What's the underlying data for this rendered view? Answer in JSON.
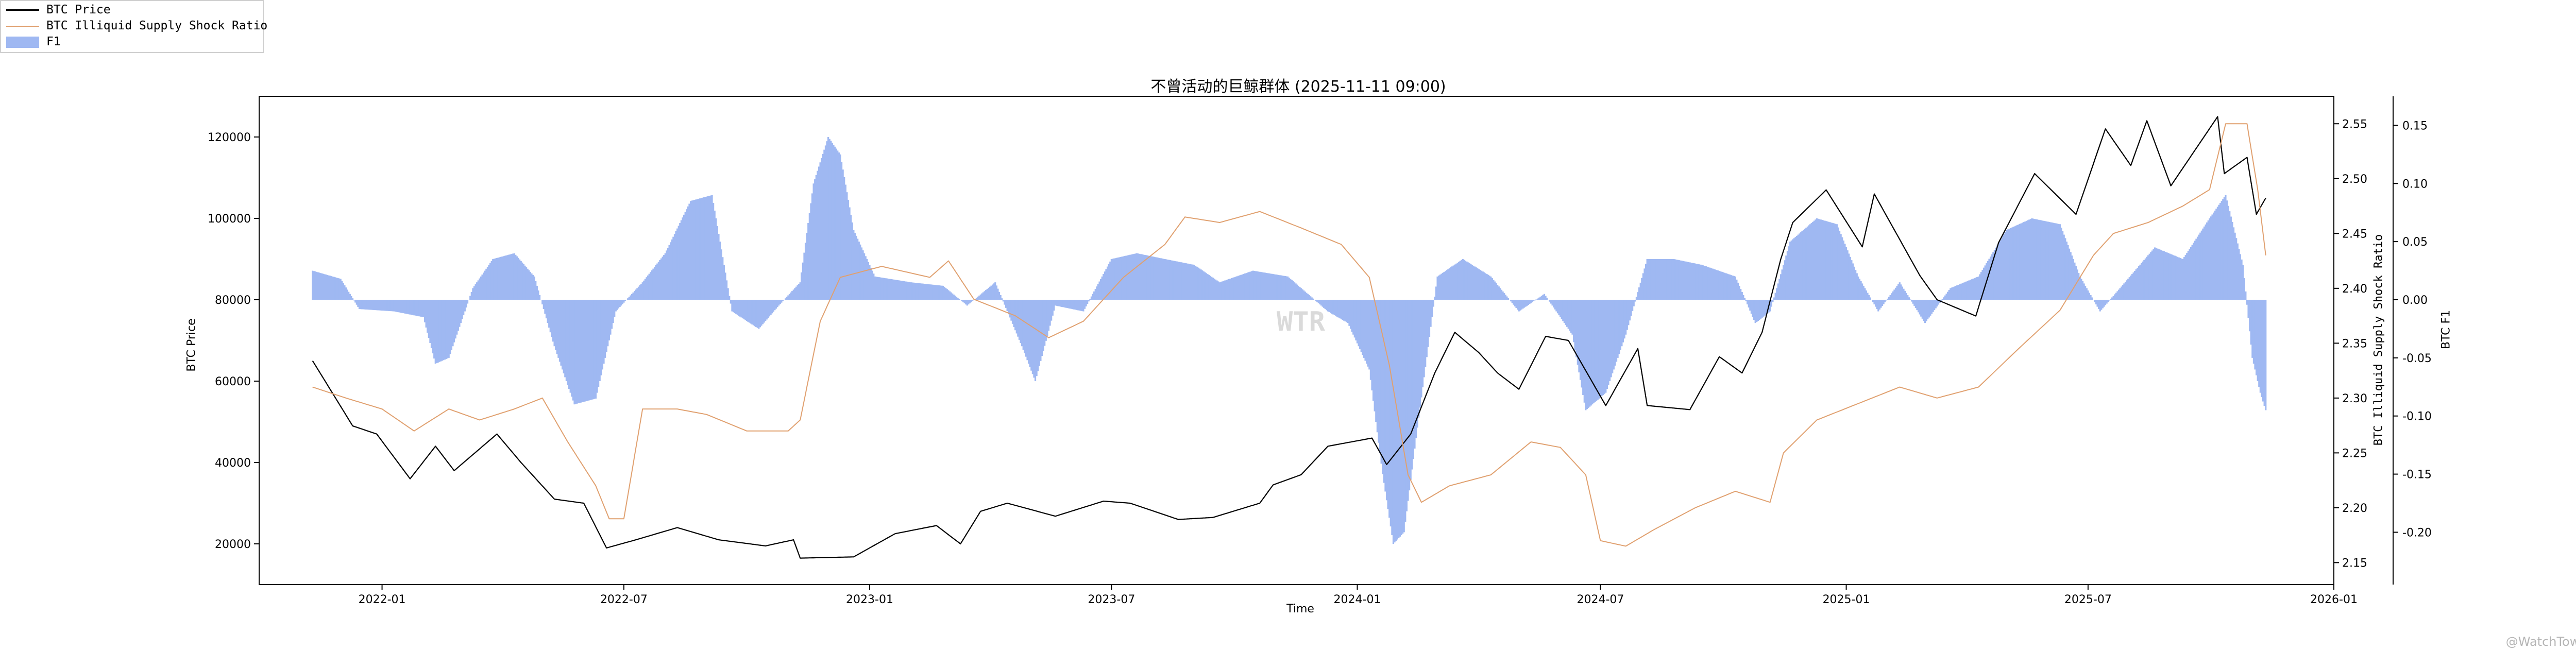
{
  "chart_data": {
    "type": "line",
    "title": "不曾活动的巨鲸群体 (2025-11-11 09:00)",
    "xlabel": "Time",
    "ylabel": "BTC Price",
    "ylabel_right_1": "BTC Illiquid Supply Shock Ratio",
    "ylabel_right_2": "BTC F1",
    "watermark": "WTR",
    "corner_watermark": "@WatchTower",
    "legend": {
      "placement": "top-left",
      "items": [
        {
          "label": "BTC Price",
          "kind": "line",
          "color": "#000000"
        },
        {
          "label": "BTC Illiquid Supply Shock Ratio",
          "kind": "line",
          "color": "#e0a06f"
        },
        {
          "label": "F1",
          "kind": "bar",
          "color": "#9fb8f2"
        }
      ]
    },
    "x_range": [
      "2021-10-01",
      "2026-01-01"
    ],
    "x_ticks": [
      "2022-01",
      "2022-07",
      "2023-01",
      "2023-07",
      "2024-01",
      "2024-07",
      "2025-01",
      "2025-07",
      "2026-01"
    ],
    "left_axis": {
      "ylim": [
        10000,
        130000
      ],
      "ticks": [
        20000,
        40000,
        60000,
        80000,
        100000,
        120000
      ],
      "tick_labels": [
        "20000",
        "40000",
        "60000",
        "80000",
        "100000",
        "120000"
      ]
    },
    "right_axis_1": {
      "ylim": [
        2.13,
        2.575
      ],
      "ticks": [
        2.15,
        2.2,
        2.25,
        2.3,
        2.35,
        2.4,
        2.45,
        2.5,
        2.55
      ],
      "tick_labels": [
        "2.15",
        "2.20",
        "2.25",
        "2.30",
        "2.35",
        "2.40",
        "2.45",
        "2.50",
        "2.55"
      ]
    },
    "right_axis_2": {
      "ylim": [
        -0.245,
        0.175
      ],
      "ticks": [
        -0.2,
        -0.15,
        -0.1,
        -0.05,
        0.0,
        0.05,
        0.1,
        0.15
      ],
      "tick_labels": [
        "-0.20",
        "-0.15",
        "-0.10",
        "-0.05",
        "0.00",
        "0.05",
        "0.10",
        "0.15"
      ]
    },
    "series": [
      {
        "name": "BTC Price",
        "axis": "left",
        "color": "#000000",
        "points": [
          [
            "2021-11-10",
            65000
          ],
          [
            "2021-11-25",
            57000
          ],
          [
            "2021-12-10",
            49000
          ],
          [
            "2021-12-28",
            47000
          ],
          [
            "2022-01-22",
            36000
          ],
          [
            "2022-02-10",
            44000
          ],
          [
            "2022-02-24",
            38000
          ],
          [
            "2022-03-28",
            47000
          ],
          [
            "2022-04-15",
            40000
          ],
          [
            "2022-05-10",
            31000
          ],
          [
            "2022-06-01",
            30000
          ],
          [
            "2022-06-18",
            19000
          ],
          [
            "2022-07-10",
            21000
          ],
          [
            "2022-08-10",
            24000
          ],
          [
            "2022-09-10",
            21000
          ],
          [
            "2022-10-15",
            19500
          ],
          [
            "2022-11-05",
            21000
          ],
          [
            "2022-11-10",
            16500
          ],
          [
            "2022-12-20",
            16800
          ],
          [
            "2023-01-20",
            22500
          ],
          [
            "2023-02-20",
            24500
          ],
          [
            "2023-03-10",
            20000
          ],
          [
            "2023-03-25",
            28000
          ],
          [
            "2023-04-14",
            30000
          ],
          [
            "2023-05-20",
            26800
          ],
          [
            "2023-06-25",
            30500
          ],
          [
            "2023-07-15",
            30000
          ],
          [
            "2023-08-20",
            26000
          ],
          [
            "2023-09-15",
            26500
          ],
          [
            "2023-10-20",
            30000
          ],
          [
            "2023-10-30",
            34500
          ],
          [
            "2023-11-20",
            37000
          ],
          [
            "2023-12-10",
            44000
          ],
          [
            "2024-01-12",
            46000
          ],
          [
            "2024-01-23",
            39500
          ],
          [
            "2024-02-10",
            47000
          ],
          [
            "2024-02-28",
            62000
          ],
          [
            "2024-03-14",
            72000
          ],
          [
            "2024-04-01",
            67000
          ],
          [
            "2024-04-15",
            62000
          ],
          [
            "2024-05-01",
            58000
          ],
          [
            "2024-05-21",
            71000
          ],
          [
            "2024-06-07",
            70000
          ],
          [
            "2024-07-05",
            54000
          ],
          [
            "2024-07-29",
            68000
          ],
          [
            "2024-08-05",
            54000
          ],
          [
            "2024-09-06",
            53000
          ],
          [
            "2024-09-28",
            66000
          ],
          [
            "2024-10-15",
            62000
          ],
          [
            "2024-10-30",
            72000
          ],
          [
            "2024-11-13",
            90000
          ],
          [
            "2024-11-22",
            99000
          ],
          [
            "2024-12-17",
            107000
          ],
          [
            "2025-01-13",
            93000
          ],
          [
            "2025-01-22",
            106000
          ],
          [
            "2025-02-25",
            86000
          ],
          [
            "2025-03-10",
            80000
          ],
          [
            "2025-04-08",
            76000
          ],
          [
            "2025-04-25",
            94000
          ],
          [
            "2025-05-22",
            111000
          ],
          [
            "2025-06-22",
            101000
          ],
          [
            "2025-07-14",
            122000
          ],
          [
            "2025-08-02",
            113000
          ],
          [
            "2025-08-14",
            124000
          ],
          [
            "2025-09-01",
            108000
          ],
          [
            "2025-10-06",
            125000
          ],
          [
            "2025-10-11",
            111000
          ],
          [
            "2025-10-28",
            115000
          ],
          [
            "2025-11-04",
            101000
          ],
          [
            "2025-11-11",
            105000
          ]
        ]
      },
      {
        "name": "BTC Illiquid Supply Shock Ratio",
        "axis": "right_1",
        "color": "#e0a06f",
        "points": [
          [
            "2021-11-10",
            2.31
          ],
          [
            "2021-12-05",
            2.3
          ],
          [
            "2022-01-01",
            2.29
          ],
          [
            "2022-01-25",
            2.27
          ],
          [
            "2022-02-20",
            2.29
          ],
          [
            "2022-03-15",
            2.28
          ],
          [
            "2022-04-10",
            2.29
          ],
          [
            "2022-05-01",
            2.3
          ],
          [
            "2022-05-20",
            2.26
          ],
          [
            "2022-06-10",
            2.22
          ],
          [
            "2022-06-20",
            2.19
          ],
          [
            "2022-07-01",
            2.19
          ],
          [
            "2022-07-15",
            2.29
          ],
          [
            "2022-08-10",
            2.29
          ],
          [
            "2022-09-01",
            2.285
          ],
          [
            "2022-10-01",
            2.27
          ],
          [
            "2022-11-01",
            2.27
          ],
          [
            "2022-11-10",
            2.28
          ],
          [
            "2022-11-25",
            2.37
          ],
          [
            "2022-12-10",
            2.41
          ],
          [
            "2023-01-10",
            2.42
          ],
          [
            "2023-02-15",
            2.41
          ],
          [
            "2023-03-01",
            2.425
          ],
          [
            "2023-03-20",
            2.39
          ],
          [
            "2023-04-20",
            2.375
          ],
          [
            "2023-05-15",
            2.355
          ],
          [
            "2023-06-10",
            2.37
          ],
          [
            "2023-07-10",
            2.41
          ],
          [
            "2023-08-10",
            2.44
          ],
          [
            "2023-08-25",
            2.465
          ],
          [
            "2023-09-20",
            2.46
          ],
          [
            "2023-10-20",
            2.47
          ],
          [
            "2023-11-20",
            2.455
          ],
          [
            "2023-12-20",
            2.44
          ],
          [
            "2024-01-10",
            2.41
          ],
          [
            "2024-01-25",
            2.33
          ],
          [
            "2024-02-08",
            2.23
          ],
          [
            "2024-02-18",
            2.205
          ],
          [
            "2024-03-10",
            2.22
          ],
          [
            "2024-04-10",
            2.23
          ],
          [
            "2024-05-10",
            2.26
          ],
          [
            "2024-06-01",
            2.255
          ],
          [
            "2024-06-20",
            2.23
          ],
          [
            "2024-07-01",
            2.17
          ],
          [
            "2024-07-20",
            2.165
          ],
          [
            "2024-08-10",
            2.18
          ],
          [
            "2024-09-10",
            2.2
          ],
          [
            "2024-10-10",
            2.215
          ],
          [
            "2024-11-05",
            2.205
          ],
          [
            "2024-11-15",
            2.25
          ],
          [
            "2024-12-10",
            2.28
          ],
          [
            "2025-01-10",
            2.295
          ],
          [
            "2025-02-10",
            2.31
          ],
          [
            "2025-03-10",
            2.3
          ],
          [
            "2025-04-10",
            2.31
          ],
          [
            "2025-05-10",
            2.345
          ],
          [
            "2025-06-10",
            2.38
          ],
          [
            "2025-07-05",
            2.43
          ],
          [
            "2025-07-20",
            2.45
          ],
          [
            "2025-08-15",
            2.46
          ],
          [
            "2025-09-10",
            2.475
          ],
          [
            "2025-09-30",
            2.49
          ],
          [
            "2025-10-12",
            2.55
          ],
          [
            "2025-10-28",
            2.55
          ],
          [
            "2025-11-05",
            2.49
          ],
          [
            "2025-11-11",
            2.43
          ]
        ]
      },
      {
        "name": "F1",
        "axis": "right_2",
        "type": "bar",
        "color": "#9fb8f2",
        "points": [
          [
            "2021-11-10",
            0.025
          ],
          [
            "2021-12-01",
            0.018
          ],
          [
            "2021-12-15",
            -0.008
          ],
          [
            "2022-01-10",
            -0.01
          ],
          [
            "2022-02-01",
            -0.015
          ],
          [
            "2022-02-10",
            -0.055
          ],
          [
            "2022-02-20",
            -0.05
          ],
          [
            "2022-03-10",
            0.01
          ],
          [
            "2022-03-25",
            0.035
          ],
          [
            "2022-04-10",
            0.04
          ],
          [
            "2022-04-25",
            0.02
          ],
          [
            "2022-05-10",
            -0.04
          ],
          [
            "2022-05-25",
            -0.09
          ],
          [
            "2022-06-10",
            -0.085
          ],
          [
            "2022-06-25",
            -0.01
          ],
          [
            "2022-07-15",
            0.015
          ],
          [
            "2022-08-01",
            0.04
          ],
          [
            "2022-08-20",
            0.085
          ],
          [
            "2022-09-05",
            0.09
          ],
          [
            "2022-09-20",
            -0.01
          ],
          [
            "2022-10-10",
            -0.025
          ],
          [
            "2022-10-25",
            -0.005
          ],
          [
            "2022-11-10",
            0.015
          ],
          [
            "2022-11-20",
            0.1
          ],
          [
            "2022-12-01",
            0.14
          ],
          [
            "2022-12-10",
            0.125
          ],
          [
            "2022-12-20",
            0.06
          ],
          [
            "2023-01-05",
            0.02
          ],
          [
            "2023-02-01",
            0.015
          ],
          [
            "2023-02-25",
            0.012
          ],
          [
            "2023-03-15",
            -0.005
          ],
          [
            "2023-04-05",
            0.015
          ],
          [
            "2023-04-25",
            -0.04
          ],
          [
            "2023-05-05",
            -0.07
          ],
          [
            "2023-05-20",
            -0.005
          ],
          [
            "2023-06-10",
            -0.01
          ],
          [
            "2023-07-01",
            0.035
          ],
          [
            "2023-07-20",
            0.04
          ],
          [
            "2023-08-10",
            0.035
          ],
          [
            "2023-09-01",
            0.03
          ],
          [
            "2023-09-20",
            0.015
          ],
          [
            "2023-10-15",
            0.025
          ],
          [
            "2023-11-10",
            0.02
          ],
          [
            "2023-12-10",
            -0.01
          ],
          [
            "2023-12-25",
            -0.02
          ],
          [
            "2024-01-10",
            -0.06
          ],
          [
            "2024-01-20",
            -0.15
          ],
          [
            "2024-01-28",
            -0.21
          ],
          [
            "2024-02-05",
            -0.2
          ],
          [
            "2024-02-15",
            -0.11
          ],
          [
            "2024-03-01",
            0.02
          ],
          [
            "2024-03-20",
            0.035
          ],
          [
            "2024-04-10",
            0.02
          ],
          [
            "2024-05-01",
            -0.01
          ],
          [
            "2024-05-20",
            0.005
          ],
          [
            "2024-06-10",
            -0.03
          ],
          [
            "2024-06-20",
            -0.095
          ],
          [
            "2024-07-05",
            -0.08
          ],
          [
            "2024-07-20",
            -0.03
          ],
          [
            "2024-08-05",
            0.035
          ],
          [
            "2024-08-25",
            0.035
          ],
          [
            "2024-09-15",
            0.03
          ],
          [
            "2024-10-10",
            0.02
          ],
          [
            "2024-10-25",
            -0.02
          ],
          [
            "2024-11-05",
            -0.01
          ],
          [
            "2024-11-20",
            0.05
          ],
          [
            "2024-12-10",
            0.07
          ],
          [
            "2024-12-25",
            0.065
          ],
          [
            "2025-01-10",
            0.02
          ],
          [
            "2025-01-25",
            -0.01
          ],
          [
            "2025-02-10",
            0.015
          ],
          [
            "2025-03-01",
            -0.02
          ],
          [
            "2025-03-20",
            0.01
          ],
          [
            "2025-04-10",
            0.02
          ],
          [
            "2025-05-01",
            0.06
          ],
          [
            "2025-05-20",
            0.07
          ],
          [
            "2025-06-10",
            0.065
          ],
          [
            "2025-06-25",
            0.02
          ],
          [
            "2025-07-10",
            -0.01
          ],
          [
            "2025-07-25",
            0.01
          ],
          [
            "2025-08-20",
            0.045
          ],
          [
            "2025-09-10",
            0.035
          ],
          [
            "2025-09-30",
            0.07
          ],
          [
            "2025-10-12",
            0.09
          ],
          [
            "2025-10-25",
            0.03
          ],
          [
            "2025-11-01",
            -0.05
          ],
          [
            "2025-11-07",
            -0.08
          ],
          [
            "2025-11-11",
            -0.095
          ]
        ]
      }
    ]
  }
}
